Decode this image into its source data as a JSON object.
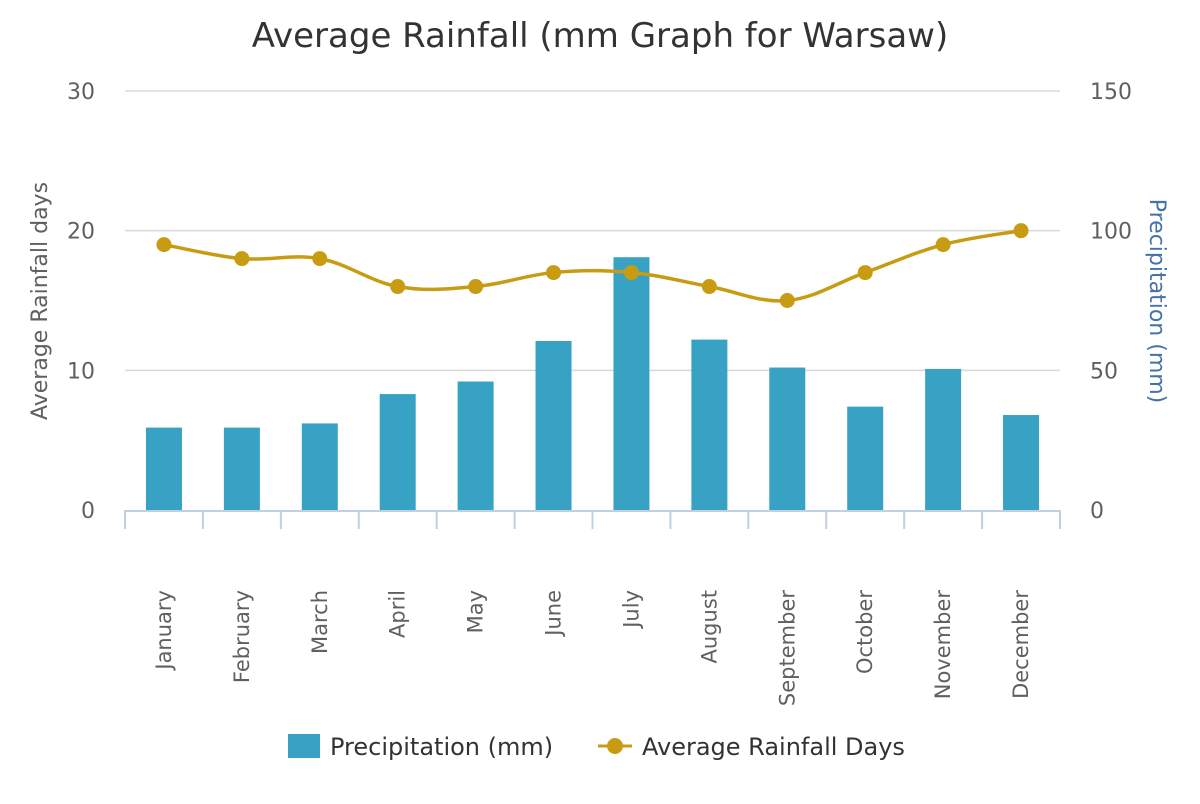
{
  "chart_data": {
    "type": "bar",
    "title": "Average Rainfall (mm Graph for Warsaw)",
    "categories": [
      "January",
      "February",
      "March",
      "April",
      "May",
      "June",
      "July",
      "August",
      "September",
      "October",
      "November",
      "December"
    ],
    "series": [
      {
        "name": "Precipitation (mm)",
        "type": "bar",
        "axis": "right",
        "color": "#37a2c4",
        "values": [
          29.5,
          29.5,
          31,
          41.5,
          46,
          60.5,
          90.5,
          61,
          51,
          37,
          50.5,
          34
        ]
      },
      {
        "name": "Average Rainfall Days",
        "type": "line",
        "axis": "left",
        "color": "#c89c12",
        "values": [
          19,
          18,
          18,
          16,
          16,
          17,
          17,
          16,
          15,
          17,
          19,
          20
        ]
      }
    ],
    "y_left": {
      "label": "Average Rainfall days",
      "min": 0,
      "max": 30,
      "ticks": [
        0,
        10,
        20,
        30
      ]
    },
    "y_right": {
      "label": "Precipitation (mm)",
      "min": 0,
      "max": 150,
      "ticks": [
        0,
        50,
        100,
        150
      ]
    },
    "grid": true,
    "legend_position": "bottom-center"
  },
  "colors": {
    "grid": "#d8d8d8",
    "axis_line": "#c0d0e0",
    "tick_text": "#606060",
    "title_text": "#333333",
    "right_axis_label": "#4572a7"
  }
}
